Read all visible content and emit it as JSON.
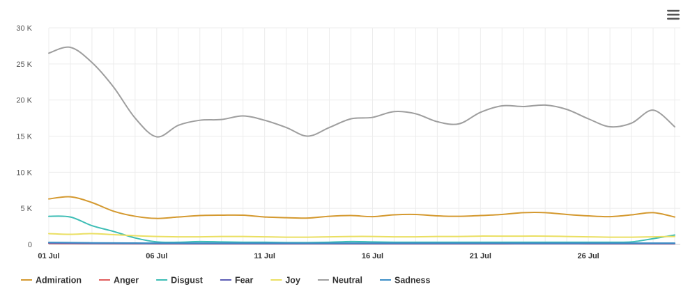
{
  "menu": {
    "icon": "hamburger-menu-icon"
  },
  "chart_data": {
    "type": "line",
    "title": "",
    "xlabel": "",
    "ylabel": "",
    "grid": true,
    "legend": "bottom-left",
    "x_start": "01 Jul",
    "x_tick_labels": [
      "01 Jul",
      "06 Jul",
      "11 Jul",
      "16 Jul",
      "21 Jul",
      "26 Jul"
    ],
    "y_ticks": [
      0,
      5000,
      10000,
      15000,
      20000,
      25000,
      30000
    ],
    "y_tick_labels": [
      "0",
      "5 K",
      "10 K",
      "15 K",
      "20 K",
      "25 K",
      "30 K"
    ],
    "ylim": [
      0,
      30000
    ],
    "series": [
      {
        "name": "Admiration",
        "color": "#d4992f",
        "values": [
          6300,
          6600,
          5800,
          4600,
          3900,
          3600,
          3800,
          4000,
          4050,
          4050,
          3800,
          3700,
          3650,
          3900,
          4000,
          3850,
          4100,
          4150,
          3950,
          3900,
          4000,
          4150,
          4400,
          4400,
          4150,
          3950,
          3850,
          4100,
          4400,
          3800
        ]
      },
      {
        "name": "Anger",
        "color": "#e05c5c",
        "values": [
          150,
          130,
          120,
          110,
          100,
          90,
          90,
          90,
          90,
          90,
          90,
          85,
          85,
          90,
          90,
          90,
          90,
          90,
          90,
          90,
          90,
          90,
          95,
          95,
          95,
          90,
          90,
          90,
          90,
          90
        ]
      },
      {
        "name": "Disgust",
        "color": "#3dbdb5",
        "values": [
          3900,
          3800,
          2600,
          1800,
          900,
          350,
          300,
          400,
          350,
          300,
          300,
          250,
          250,
          300,
          400,
          350,
          300,
          300,
          300,
          300,
          300,
          300,
          300,
          300,
          300,
          300,
          300,
          350,
          800,
          1300
        ]
      },
      {
        "name": "Fear",
        "color": "#5b5db5",
        "values": [
          200,
          180,
          150,
          140,
          130,
          120,
          115,
          110,
          110,
          110,
          110,
          110,
          105,
          110,
          110,
          110,
          110,
          110,
          110,
          110,
          110,
          110,
          110,
          110,
          110,
          110,
          110,
          110,
          110,
          110
        ]
      },
      {
        "name": "Joy",
        "color": "#eadf62",
        "values": [
          1500,
          1400,
          1500,
          1350,
          1200,
          1100,
          1050,
          1050,
          1100,
          1100,
          1050,
          1000,
          1000,
          1050,
          1100,
          1100,
          1050,
          1050,
          1100,
          1100,
          1150,
          1150,
          1150,
          1150,
          1100,
          1050,
          1000,
          1000,
          1050,
          1100
        ]
      },
      {
        "name": "Neutral",
        "color": "#9e9e9e",
        "values": [
          26500,
          27300,
          25200,
          21800,
          17500,
          14900,
          16500,
          17200,
          17300,
          17800,
          17200,
          16200,
          15000,
          16200,
          17400,
          17600,
          18400,
          18100,
          17000,
          16700,
          18300,
          19200,
          19100,
          19300,
          18700,
          17400,
          16300,
          16800,
          18600,
          16300
        ]
      },
      {
        "name": "Sadness",
        "color": "#3d8fc7",
        "values": [
          280,
          250,
          220,
          200,
          190,
          180,
          180,
          180,
          180,
          180,
          180,
          180,
          170,
          175,
          180,
          180,
          180,
          180,
          180,
          180,
          180,
          180,
          180,
          180,
          180,
          180,
          180,
          180,
          180,
          180
        ]
      }
    ]
  }
}
